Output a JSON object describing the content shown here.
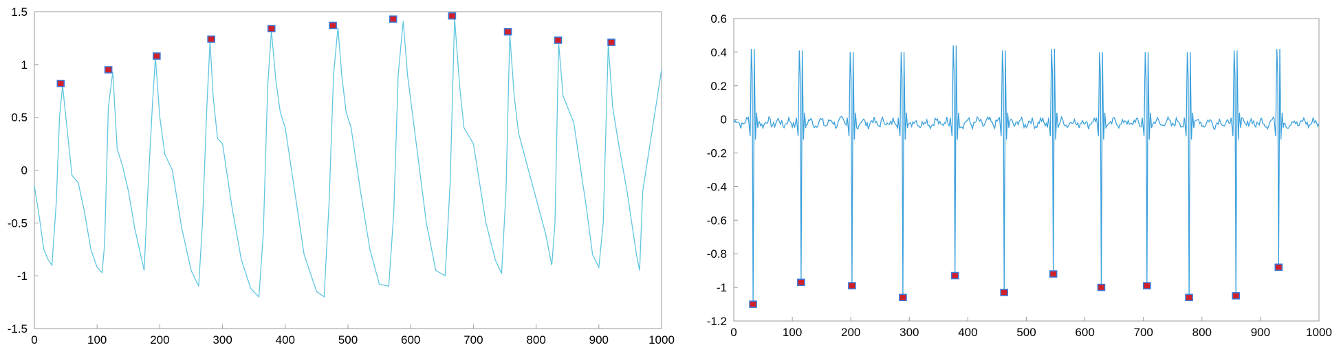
{
  "colors": {
    "left_line": "#5fc6e0",
    "right_line": "#3aa0dc",
    "marker_fill": "#d0202a",
    "marker_edge": "#3a78d8"
  },
  "chart_data": [
    {
      "type": "line",
      "title": "",
      "xlabel": "",
      "ylabel": "",
      "xlim": [
        0,
        1000
      ],
      "ylim": [
        -1.5,
        1.5
      ],
      "xticks": [
        0,
        100,
        200,
        300,
        400,
        500,
        600,
        700,
        800,
        900,
        1000
      ],
      "yticks": [
        1.5,
        1,
        0.5,
        0,
        -0.5,
        -1,
        -1.5
      ],
      "xtick_labels": [
        "0",
        "100",
        "200",
        "300",
        "400",
        "500",
        "600",
        "700",
        "800",
        "900",
        "1000"
      ],
      "ytick_labels": [
        "1.5",
        "1",
        "0.5",
        "0",
        "-0.5",
        "-1",
        "-1.5"
      ],
      "grid": false,
      "series": [
        {
          "kind": "line",
          "x": [
            0,
            8,
            15,
            22,
            28,
            35,
            40,
            45,
            52,
            60,
            70,
            80,
            90,
            100,
            108,
            112,
            118,
            125,
            132,
            140,
            150,
            160,
            175,
            180,
            188,
            193,
            200,
            208,
            220,
            235,
            250,
            262,
            268,
            275,
            280,
            285,
            292,
            300,
            315,
            330,
            345,
            358,
            365,
            372,
            378,
            385,
            392,
            400,
            415,
            430,
            450,
            462,
            470,
            477,
            484,
            490,
            497,
            505,
            520,
            535,
            550,
            565,
            573,
            580,
            588,
            595,
            610,
            625,
            640,
            655,
            663,
            670,
            678,
            685,
            700,
            720,
            735,
            745,
            752,
            758,
            765,
            772,
            790,
            815,
            825,
            830,
            836,
            843,
            860,
            880,
            890,
            900,
            907,
            915,
            922,
            930,
            945,
            960,
            965,
            970,
            1000
          ],
          "y": [
            -0.15,
            -0.45,
            -0.75,
            -0.85,
            -0.9,
            -0.3,
            0.5,
            0.8,
            0.4,
            -0.05,
            -0.12,
            -0.4,
            -0.75,
            -0.92,
            -0.97,
            -0.7,
            0.6,
            0.93,
            0.2,
            0.05,
            -0.2,
            -0.55,
            -0.95,
            -0.3,
            0.6,
            1.07,
            0.5,
            0.15,
            0.0,
            -0.55,
            -0.95,
            -1.1,
            -0.5,
            0.6,
            1.22,
            0.7,
            0.3,
            0.25,
            -0.35,
            -0.85,
            -1.12,
            -1.2,
            -0.6,
            0.8,
            1.32,
            0.85,
            0.55,
            0.4,
            -0.2,
            -0.8,
            -1.15,
            -1.2,
            -0.3,
            0.9,
            1.35,
            0.9,
            0.55,
            0.4,
            -0.2,
            -0.75,
            -1.08,
            -1.1,
            -0.4,
            0.9,
            1.41,
            0.9,
            0.2,
            -0.5,
            -0.95,
            -1.0,
            -0.1,
            1.44,
            0.8,
            0.4,
            0.25,
            -0.5,
            -0.85,
            -0.98,
            -0.2,
            1.29,
            0.7,
            0.35,
            -0.05,
            -0.6,
            -0.9,
            -0.5,
            1.2,
            0.7,
            0.45,
            -0.35,
            -0.8,
            -0.92,
            -0.5,
            1.19,
            0.6,
            0.3,
            -0.2,
            -0.8,
            -0.95,
            -0.2,
            0.95
          ]
        },
        {
          "kind": "markers",
          "x": [
            42,
            118,
            195,
            282,
            378,
            476,
            572,
            666,
            755,
            835,
            920
          ],
          "y": [
            0.82,
            0.95,
            1.08,
            1.24,
            1.34,
            1.37,
            1.43,
            1.46,
            1.31,
            1.23,
            1.21
          ]
        }
      ]
    },
    {
      "type": "line",
      "title": "",
      "xlabel": "",
      "ylabel": "",
      "xlim": [
        0,
        1000
      ],
      "ylim": [
        -1.2,
        0.6
      ],
      "xticks": [
        0,
        100,
        200,
        300,
        400,
        500,
        600,
        700,
        800,
        900,
        1000
      ],
      "yticks": [
        0.6,
        0.4,
        0.2,
        0,
        -0.2,
        -0.4,
        -0.6,
        -0.8,
        -1,
        -1.2
      ],
      "xtick_labels": [
        "0",
        "100",
        "200",
        "300",
        "400",
        "500",
        "600",
        "700",
        "800",
        "900",
        "1000"
      ],
      "ytick_labels": [
        "0.6",
        "0.4",
        "0.2",
        "0",
        "-0.2",
        "-0.4",
        "-0.6",
        "-0.8",
        "-1",
        "-1.2"
      ],
      "grid": false,
      "series": [
        {
          "kind": "spike-train",
          "baseline": -0.02,
          "spike_x": [
            33,
            115,
            202,
            289,
            378,
            462,
            546,
            628,
            706,
            778,
            858,
            931
          ],
          "spike_peak": [
            0.42,
            0.41,
            0.4,
            0.4,
            0.44,
            0.41,
            0.42,
            0.4,
            0.4,
            0.4,
            0.41,
            0.42
          ],
          "spike_trough": [
            -1.1,
            -0.97,
            -0.99,
            -1.06,
            -0.93,
            -1.03,
            -0.92,
            -1.0,
            -0.99,
            -1.06,
            -1.05,
            -0.88
          ]
        },
        {
          "kind": "markers",
          "x": [
            33,
            115,
            202,
            289,
            378,
            462,
            546,
            628,
            706,
            778,
            858,
            931
          ],
          "y": [
            -1.1,
            -0.97,
            -0.99,
            -1.06,
            -0.93,
            -1.03,
            -0.92,
            -1.0,
            -0.99,
            -1.06,
            -1.05,
            -0.88
          ]
        }
      ]
    }
  ]
}
